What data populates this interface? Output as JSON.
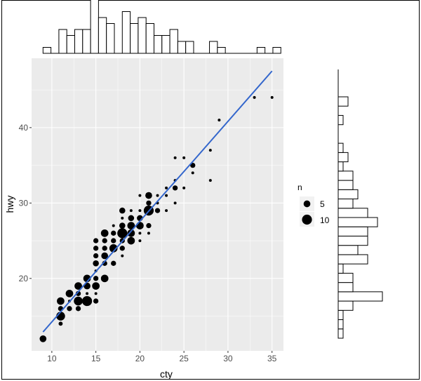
{
  "chart_data": {
    "type": "scatter",
    "xlabel": "cty",
    "ylabel": "hwy",
    "xlim": [
      7.7,
      36.3
    ],
    "ylim": [
      10.4,
      49.2
    ],
    "xticks": [
      "10",
      "15",
      "20",
      "25",
      "30",
      "35"
    ],
    "yticks": [
      "20",
      "30",
      "40"
    ],
    "grid": true,
    "background": "#ebebeb",
    "point_color": "#000000",
    "legend": {
      "title": "n",
      "position": "right",
      "entries": [
        {
          "label": "5",
          "n": 5
        },
        {
          "label": "10",
          "n": 10
        }
      ]
    },
    "points": [
      {
        "cty": 9,
        "hwy": 12,
        "n": 5
      },
      {
        "cty": 11,
        "hwy": 17,
        "n": 6
      },
      {
        "cty": 11,
        "hwy": 16,
        "n": 3
      },
      {
        "cty": 11,
        "hwy": 15,
        "n": 8
      },
      {
        "cty": 11,
        "hwy": 14,
        "n": 2
      },
      {
        "cty": 12,
        "hwy": 18,
        "n": 6
      },
      {
        "cty": 12,
        "hwy": 17,
        "n": 1
      },
      {
        "cty": 12,
        "hwy": 16,
        "n": 3
      },
      {
        "cty": 13,
        "hwy": 19,
        "n": 6
      },
      {
        "cty": 13,
        "hwy": 18,
        "n": 3
      },
      {
        "cty": 13,
        "hwy": 17,
        "n": 8
      },
      {
        "cty": 13,
        "hwy": 16,
        "n": 3
      },
      {
        "cty": 14,
        "hwy": 20,
        "n": 6
      },
      {
        "cty": 14,
        "hwy": 19,
        "n": 5
      },
      {
        "cty": 14,
        "hwy": 18,
        "n": 1
      },
      {
        "cty": 14,
        "hwy": 17,
        "n": 10
      },
      {
        "cty": 15,
        "hwy": 25,
        "n": 3
      },
      {
        "cty": 15,
        "hwy": 24,
        "n": 3
      },
      {
        "cty": 15,
        "hwy": 23,
        "n": 3
      },
      {
        "cty": 15,
        "hwy": 22,
        "n": 4
      },
      {
        "cty": 15,
        "hwy": 21,
        "n": 1
      },
      {
        "cty": 15,
        "hwy": 20,
        "n": 3
      },
      {
        "cty": 15,
        "hwy": 19,
        "n": 6
      },
      {
        "cty": 15,
        "hwy": 18,
        "n": 1
      },
      {
        "cty": 15,
        "hwy": 17,
        "n": 3
      },
      {
        "cty": 16,
        "hwy": 26,
        "n": 6
      },
      {
        "cty": 16,
        "hwy": 25,
        "n": 3
      },
      {
        "cty": 16,
        "hwy": 24,
        "n": 3
      },
      {
        "cty": 16,
        "hwy": 23,
        "n": 5
      },
      {
        "cty": 16,
        "hwy": 22,
        "n": 3
      },
      {
        "cty": 16,
        "hwy": 20,
        "n": 6
      },
      {
        "cty": 17,
        "hwy": 27,
        "n": 1
      },
      {
        "cty": 17,
        "hwy": 26,
        "n": 3
      },
      {
        "cty": 17,
        "hwy": 25,
        "n": 3
      },
      {
        "cty": 17,
        "hwy": 24,
        "n": 7
      },
      {
        "cty": 17,
        "hwy": 22,
        "n": 3
      },
      {
        "cty": 18,
        "hwy": 29,
        "n": 4
      },
      {
        "cty": 18,
        "hwy": 28,
        "n": 1
      },
      {
        "cty": 18,
        "hwy": 27,
        "n": 4
      },
      {
        "cty": 18,
        "hwy": 26,
        "n": 10
      },
      {
        "cty": 18,
        "hwy": 25,
        "n": 3
      },
      {
        "cty": 18,
        "hwy": 24,
        "n": 3
      },
      {
        "cty": 18,
        "hwy": 23,
        "n": 1
      },
      {
        "cty": 19,
        "hwy": 29,
        "n": 1
      },
      {
        "cty": 19,
        "hwy": 28,
        "n": 4
      },
      {
        "cty": 19,
        "hwy": 27,
        "n": 6
      },
      {
        "cty": 19,
        "hwy": 26,
        "n": 6
      },
      {
        "cty": 19,
        "hwy": 25,
        "n": 6
      },
      {
        "cty": 20,
        "hwy": 31,
        "n": 1
      },
      {
        "cty": 20,
        "hwy": 29,
        "n": 1
      },
      {
        "cty": 20,
        "hwy": 28,
        "n": 4
      },
      {
        "cty": 20,
        "hwy": 27,
        "n": 6
      },
      {
        "cty": 20,
        "hwy": 26,
        "n": 1
      },
      {
        "cty": 20,
        "hwy": 25,
        "n": 1
      },
      {
        "cty": 21,
        "hwy": 31,
        "n": 5
      },
      {
        "cty": 21,
        "hwy": 30,
        "n": 3
      },
      {
        "cty": 21,
        "hwy": 29,
        "n": 10
      },
      {
        "cty": 21,
        "hwy": 27,
        "n": 3
      },
      {
        "cty": 21,
        "hwy": 26,
        "n": 1
      },
      {
        "cty": 22,
        "hwy": 31,
        "n": 1
      },
      {
        "cty": 22,
        "hwy": 30,
        "n": 1
      },
      {
        "cty": 22,
        "hwy": 29,
        "n": 3
      },
      {
        "cty": 23,
        "hwy": 32,
        "n": 1
      },
      {
        "cty": 23,
        "hwy": 31,
        "n": 1
      },
      {
        "cty": 23,
        "hwy": 29,
        "n": 1
      },
      {
        "cty": 24,
        "hwy": 36,
        "n": 1
      },
      {
        "cty": 24,
        "hwy": 33,
        "n": 1
      },
      {
        "cty": 24,
        "hwy": 32,
        "n": 3
      },
      {
        "cty": 24,
        "hwy": 30,
        "n": 1
      },
      {
        "cty": 25,
        "hwy": 36,
        "n": 1
      },
      {
        "cty": 25,
        "hwy": 32,
        "n": 1
      },
      {
        "cty": 26,
        "hwy": 35,
        "n": 3
      },
      {
        "cty": 26,
        "hwy": 34,
        "n": 1
      },
      {
        "cty": 28,
        "hwy": 37,
        "n": 1
      },
      {
        "cty": 28,
        "hwy": 33,
        "n": 1
      },
      {
        "cty": 29,
        "hwy": 41,
        "n": 1
      },
      {
        "cty": 33,
        "hwy": 44,
        "n": 1
      },
      {
        "cty": 35,
        "hwy": 44,
        "n": 1
      }
    ],
    "smooth_line": {
      "color": "#3366cc",
      "points": [
        {
          "cty": 9,
          "hwy": 12.9
        },
        {
          "cty": 20,
          "hwy": 27.6
        },
        {
          "cty": 26,
          "hwy": 35.5
        },
        {
          "cty": 35,
          "hwy": 47.5
        }
      ]
    },
    "top_histogram": {
      "variable": "cty",
      "bin_start": 9,
      "binwidth": 0.9,
      "counts": [
        1,
        0,
        4,
        3,
        4,
        4,
        10,
        6,
        5,
        0,
        7,
        5,
        6,
        5,
        3,
        3,
        4,
        2,
        2,
        0,
        0,
        2,
        1,
        0,
        0,
        0,
        0,
        1,
        0,
        1
      ]
    },
    "right_histogram": {
      "variable": "hwy",
      "bin_start": 12,
      "binwidth": 1.23,
      "counts": [
        1,
        1,
        1,
        3,
        9,
        3,
        3,
        1,
        6,
        4,
        6,
        6,
        8,
        6,
        3,
        4,
        3,
        3,
        1,
        2,
        1,
        0,
        0,
        1,
        0,
        2
      ]
    }
  }
}
